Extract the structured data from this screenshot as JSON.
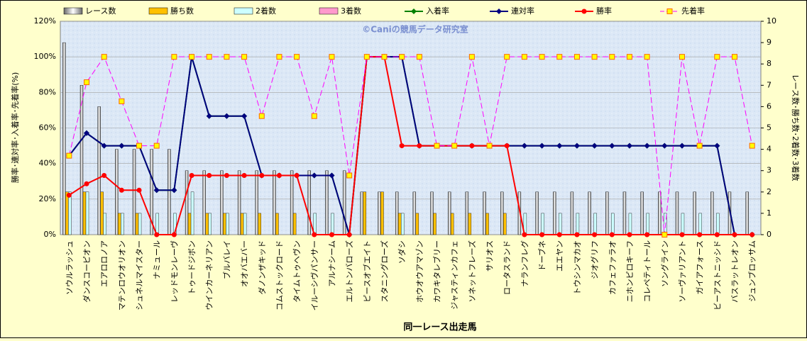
{
  "chart_data": {
    "type": "combo",
    "title": "©Caniの競馬データ研究室",
    "x_label": "同一レース出走馬",
    "y_label": "勝率･連対率･入着率･先着率(%)",
    "y2_label": "レース数･勝ち数･2着数･3着数",
    "categories": [
      "ソウルラッシュ",
      "ダンスコーピオン",
      "エアロロノア",
      "マテンロウオリオン",
      "シュネルマイスター",
      "ナミュール",
      "レッドモンレーヴ",
      "トゥードジボン",
      "ウインカーネリアン",
      "ブルバレイ",
      "オオバエバー",
      "ダノンザキッド",
      "コムストックロード",
      "タイムトゥヘヴン",
      "イルーシヴパンサー",
      "アルナシーム",
      "エルトンバローズ",
      "ピースオブエイト",
      "スタニングローズ",
      "ソダシ",
      "ホウオウアマゾン",
      "カワキタレブリー",
      "ジャスティンカフェ",
      "ソネットフレーズ",
      "サリオス",
      "ロータスランド",
      "ナランフレグ",
      "ドーブネ",
      "エエヤン",
      "トウシンマカオ",
      "ジオグリフ",
      "カフェファラオ",
      "ニホンピロキーフ",
      "コレペティトール",
      "ソングライン",
      "ソーヴァリアント",
      "ガイアフォース",
      "ビーアストニッシド",
      "バスラットレオン",
      "ジュンブロッサム"
    ],
    "series": [
      {
        "name": "レース数",
        "type": "bar",
        "axis": "y2",
        "color": "#d0d0d0",
        "values": [
          9,
          7,
          6,
          4,
          4,
          4,
          4,
          3,
          3,
          3,
          3,
          3,
          3,
          3,
          3,
          3,
          3,
          2,
          2,
          2,
          2,
          2,
          2,
          2,
          2,
          2,
          2,
          2,
          2,
          2,
          2,
          2,
          2,
          2,
          2,
          2,
          2,
          2,
          2,
          2
        ]
      },
      {
        "name": "勝ち数",
        "type": "bar",
        "axis": "y2",
        "color": "#ffc000",
        "values": [
          2,
          2,
          2,
          1,
          1,
          0,
          0,
          1,
          1,
          1,
          1,
          1,
          1,
          1,
          0,
          0,
          0,
          2,
          2,
          1,
          1,
          1,
          1,
          1,
          1,
          1,
          0,
          0,
          0,
          0,
          0,
          0,
          0,
          0,
          0,
          0,
          0,
          0,
          0,
          0
        ]
      },
      {
        "name": "2着数",
        "type": "bar",
        "axis": "y2",
        "color": "#ccffff",
        "values": [
          2,
          2,
          1,
          1,
          1,
          1,
          1,
          2,
          1,
          1,
          1,
          0,
          0,
          0,
          1,
          1,
          0,
          0,
          0,
          1,
          0,
          0,
          0,
          0,
          0,
          0,
          1,
          1,
          1,
          1,
          1,
          1,
          1,
          1,
          1,
          1,
          1,
          1,
          0,
          0
        ]
      },
      {
        "name": "3着数",
        "type": "bar",
        "axis": "y2",
        "color": "#ff99cc",
        "values": [
          0,
          0,
          0,
          0,
          0,
          0,
          0,
          0,
          0,
          0,
          0,
          0,
          0,
          0,
          0,
          0,
          0,
          0,
          0,
          0,
          0,
          0,
          0,
          0,
          0,
          0,
          0,
          0,
          0,
          0,
          0,
          0,
          0,
          0,
          0,
          0,
          0,
          0,
          0,
          0
        ]
      },
      {
        "name": "入着率",
        "type": "line",
        "color": "#008000",
        "marker": "diamond",
        "values": [
          44.4,
          57.1,
          50,
          50,
          50,
          25,
          25,
          100,
          66.7,
          66.7,
          66.7,
          33.3,
          33.3,
          33.3,
          33.3,
          33.3,
          0,
          100,
          100,
          100,
          50,
          50,
          50,
          50,
          50,
          50,
          50,
          50,
          50,
          50,
          50,
          50,
          50,
          50,
          50,
          50,
          50,
          50,
          0,
          0
        ]
      },
      {
        "name": "連対率",
        "type": "line",
        "color": "#000080",
        "marker": "diamond",
        "values": [
          44.4,
          57.1,
          50,
          50,
          50,
          25,
          25,
          100,
          66.7,
          66.7,
          66.7,
          33.3,
          33.3,
          33.3,
          33.3,
          33.3,
          0,
          100,
          100,
          100,
          50,
          50,
          50,
          50,
          50,
          50,
          50,
          50,
          50,
          50,
          50,
          50,
          50,
          50,
          50,
          50,
          50,
          50,
          0,
          0
        ]
      },
      {
        "name": "勝率",
        "type": "line",
        "color": "#ff0000",
        "marker": "circle",
        "values": [
          22.2,
          28.6,
          33.3,
          25,
          25,
          0,
          0,
          33.3,
          33.3,
          33.3,
          33.3,
          33.3,
          33.3,
          33.3,
          0,
          0,
          0,
          100,
          100,
          50,
          50,
          50,
          50,
          50,
          50,
          50,
          0,
          0,
          0,
          0,
          0,
          0,
          0,
          0,
          0,
          0,
          0,
          0,
          0,
          0
        ]
      },
      {
        "name": "先着率",
        "type": "line",
        "color": "#ff00ff",
        "marker": "square",
        "dashed": true,
        "values": [
          44.4,
          85.7,
          100,
          75,
          50,
          50,
          100,
          100,
          100,
          100,
          100,
          66.7,
          100,
          100,
          66.7,
          100,
          33.3,
          100,
          100,
          100,
          100,
          50,
          50,
          100,
          50,
          100,
          100,
          100,
          100,
          100,
          100,
          100,
          100,
          100,
          0,
          100,
          50,
          100,
          100,
          50
        ]
      }
    ],
    "ylim": [
      0,
      120
    ],
    "yticks": [
      {
        "value": 0,
        "label": "0%"
      },
      {
        "value": 20,
        "label": "20%"
      },
      {
        "value": 40,
        "label": "40%"
      },
      {
        "value": 60,
        "label": "60%"
      },
      {
        "value": 80,
        "label": "80%"
      },
      {
        "value": 100,
        "label": "100%"
      },
      {
        "value": 120,
        "label": "120%"
      }
    ],
    "y2lim": [
      0,
      10
    ],
    "y2ticks": [
      0,
      1,
      2,
      3,
      4,
      5,
      6,
      7,
      8,
      9,
      10
    ],
    "grid": true
  }
}
